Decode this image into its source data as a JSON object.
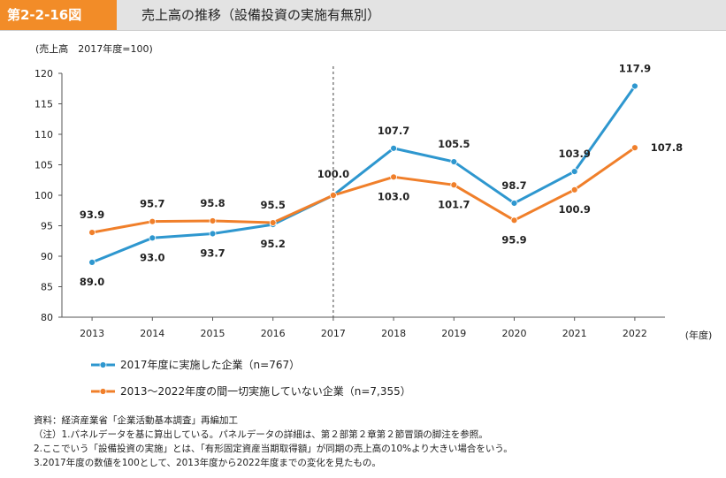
{
  "header": {
    "fig_num": "第2-2-16図",
    "title": "売上高の推移（設備投資の実施有無別）"
  },
  "chart_data": {
    "type": "line",
    "ylabel": "(売上高　2017年度=100)",
    "xlabel": "(年度)",
    "categories": [
      "2013",
      "2014",
      "2015",
      "2016",
      "2017",
      "2018",
      "2019",
      "2020",
      "2021",
      "2022"
    ],
    "ylim": [
      80,
      120
    ],
    "yticks": [
      80,
      85,
      90,
      95,
      100,
      105,
      110,
      115,
      120
    ],
    "grid": false,
    "reference_line_at": "2017",
    "legend_position": "bottom",
    "series": [
      {
        "name": "2017年度に実施した企業（n=767）",
        "color": "#2e97cf",
        "values": [
          89.0,
          93.0,
          93.7,
          95.2,
          100.0,
          107.7,
          105.5,
          98.7,
          103.9,
          117.9
        ],
        "labels": [
          "89.0",
          "93.0",
          "93.7",
          "95.2",
          "100.0",
          "107.7",
          "105.5",
          "98.7",
          "103.9",
          "117.9"
        ]
      },
      {
        "name": "2013～2022年度の間一切実施していない企業（n=7,355）",
        "color": "#f07f2a",
        "values": [
          93.9,
          95.7,
          95.8,
          95.5,
          100.0,
          103.0,
          101.7,
          95.9,
          100.9,
          107.8
        ],
        "labels": [
          "93.9",
          "95.7",
          "95.8",
          "95.5",
          "",
          "103.0",
          "101.7",
          "95.9",
          "100.9",
          "107.8"
        ]
      }
    ]
  },
  "notes": [
    "資料：経済産業省「企業活動基本調査」再編加工",
    "（注）1.パネルデータを基に算出している。パネルデータの詳細は、第２部第２章第２節冒頭の脚注を参照。",
    "2.ここでいう「設備投資の実施」とは、「有形固定資産当期取得額」が同期の売上高の10%より大きい場合をいう。",
    "3.2017年度の数値を100として、2013年度から2022年度までの変化を見たもの。"
  ]
}
